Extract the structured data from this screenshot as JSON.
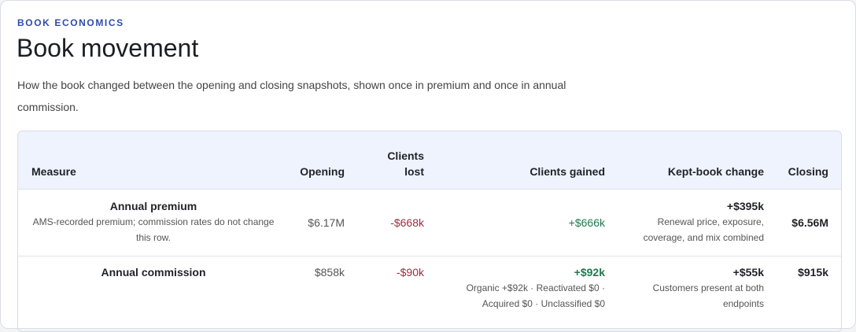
{
  "header": {
    "eyebrow": "BOOK ECONOMICS",
    "title": "Book movement",
    "description": "How the book changed between the opening and closing snapshots, shown once in premium and once in annual commission."
  },
  "table": {
    "columns": [
      "Measure",
      "Opening",
      "Clients lost",
      "Clients gained",
      "Kept-book change",
      "Closing"
    ],
    "rows": [
      {
        "measure": {
          "name": "Annual premium",
          "note": "AMS-recorded premium; commission rates do not change this row."
        },
        "opening": "$6.17M",
        "lost": "-$668k",
        "gained": {
          "value": "+$666k"
        },
        "kept": {
          "value": "+$395k",
          "note": "Renewal price, exposure, coverage, and mix combined"
        },
        "closing": "$6.56M"
      },
      {
        "measure": {
          "name": "Annual commission"
        },
        "opening": "$858k",
        "lost": "-$90k",
        "gained": {
          "value": "+$92k",
          "note": "Organic +$92k · Reactivated $0 · Acquired $0 · Unclassified $0"
        },
        "kept": {
          "value": "+$55k",
          "note": "Customers present at both endpoints"
        },
        "closing": "$915k"
      }
    ]
  }
}
